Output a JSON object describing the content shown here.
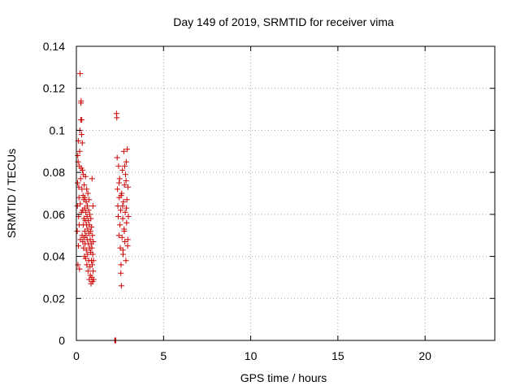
{
  "chart_data": {
    "type": "scatter",
    "title": "Day 149 of 2019, SRMTID for receiver vima",
    "xlabel": "GPS time / hours",
    "ylabel": "SRMTID / TECUs",
    "xlim": [
      0,
      24
    ],
    "ylim": [
      0,
      0.14
    ],
    "xticks": [
      0,
      5,
      10,
      15,
      20
    ],
    "xtick_labels": [
      "0",
      "5",
      "10",
      "15",
      "20"
    ],
    "yticks": [
      0,
      0.02,
      0.04,
      0.06,
      0.08,
      0.1,
      0.12,
      0.14
    ],
    "ytick_labels": [
      "0",
      "0.02",
      "0.04",
      "0.06",
      "0.08",
      "0.1",
      "0.12",
      "0.14"
    ],
    "grid": true,
    "marker": "+",
    "series": [
      {
        "color": "#cc0000",
        "points": [
          [
            0.05,
            0.052
          ],
          [
            0.06,
            0.064
          ],
          [
            0.07,
            0.075
          ],
          [
            0.08,
            0.088
          ],
          [
            0.09,
            0.036
          ],
          [
            0.1,
            0.085
          ],
          [
            0.11,
            0.095
          ],
          [
            0.12,
            0.045
          ],
          [
            0.13,
            0.059
          ],
          [
            0.14,
            0.073
          ],
          [
            0.15,
            0.068
          ],
          [
            0.16,
            0.055
          ],
          [
            0.17,
            0.083
          ],
          [
            0.18,
            0.034
          ],
          [
            0.19,
            0.09
          ],
          [
            0.2,
            0.1
          ],
          [
            0.21,
            0.127
          ],
          [
            0.22,
            0.065
          ],
          [
            0.23,
            0.048
          ],
          [
            0.24,
            0.077
          ],
          [
            0.25,
            0.105
          ],
          [
            0.26,
            0.113
          ],
          [
            0.27,
            0.114
          ],
          [
            0.28,
            0.082
          ],
          [
            0.29,
            0.061
          ],
          [
            0.3,
            0.098
          ],
          [
            0.31,
            0.105
          ],
          [
            0.32,
            0.072
          ],
          [
            0.33,
            0.05
          ],
          [
            0.34,
            0.094
          ],
          [
            0.35,
            0.081
          ],
          [
            0.36,
            0.062
          ],
          [
            0.37,
            0.047
          ],
          [
            0.38,
            0.069
          ],
          [
            0.39,
            0.055
          ],
          [
            0.4,
            0.079
          ],
          [
            0.41,
            0.044
          ],
          [
            0.42,
            0.067
          ],
          [
            0.43,
            0.058
          ],
          [
            0.44,
            0.049
          ],
          [
            0.45,
            0.074
          ],
          [
            0.46,
            0.04
          ],
          [
            0.47,
            0.063
          ],
          [
            0.48,
            0.052
          ],
          [
            0.49,
            0.068
          ],
          [
            0.5,
            0.046
          ],
          [
            0.51,
            0.057
          ],
          [
            0.52,
            0.078
          ],
          [
            0.53,
            0.039
          ],
          [
            0.54,
            0.061
          ],
          [
            0.55,
            0.05
          ],
          [
            0.56,
            0.066
          ],
          [
            0.57,
            0.043
          ],
          [
            0.58,
            0.055
          ],
          [
            0.59,
            0.072
          ],
          [
            0.6,
            0.036
          ],
          [
            0.61,
            0.059
          ],
          [
            0.62,
            0.048
          ],
          [
            0.63,
            0.064
          ],
          [
            0.64,
            0.041
          ],
          [
            0.65,
            0.053
          ],
          [
            0.66,
            0.07
          ],
          [
            0.67,
            0.033
          ],
          [
            0.68,
            0.057
          ],
          [
            0.69,
            0.046
          ],
          [
            0.7,
            0.062
          ],
          [
            0.71,
            0.038
          ],
          [
            0.72,
            0.051
          ],
          [
            0.73,
            0.067
          ],
          [
            0.74,
            0.029
          ],
          [
            0.75,
            0.055
          ],
          [
            0.76,
            0.044
          ],
          [
            0.77,
            0.06
          ],
          [
            0.78,
            0.035
          ],
          [
            0.79,
            0.048
          ],
          [
            0.8,
            0.031
          ],
          [
            0.81,
            0.052
          ],
          [
            0.82,
            0.042
          ],
          [
            0.83,
            0.058
          ],
          [
            0.84,
            0.027
          ],
          [
            0.85,
            0.046
          ],
          [
            0.86,
            0.038
          ],
          [
            0.87,
            0.054
          ],
          [
            0.88,
            0.03
          ],
          [
            0.89,
            0.044
          ],
          [
            0.9,
            0.077
          ],
          [
            0.91,
            0.036
          ],
          [
            0.92,
            0.05
          ],
          [
            0.93,
            0.028
          ],
          [
            0.94,
            0.041
          ],
          [
            0.95,
            0.064
          ],
          [
            0.96,
            0.033
          ],
          [
            0.97,
            0.047
          ],
          [
            0.98,
            0.038
          ],
          [
            0.99,
            0.029
          ],
          [
            2.2,
            0.0
          ],
          [
            2.22,
            0.0
          ],
          [
            2.24,
            0.0
          ],
          [
            2.26,
            0.0
          ],
          [
            2.3,
            0.108
          ],
          [
            2.32,
            0.106
          ],
          [
            2.34,
            0.087
          ],
          [
            2.36,
            0.072
          ],
          [
            2.38,
            0.064
          ],
          [
            2.4,
            0.059
          ],
          [
            2.42,
            0.083
          ],
          [
            2.44,
            0.05
          ],
          [
            2.46,
            0.068
          ],
          [
            2.48,
            0.077
          ],
          [
            2.5,
            0.055
          ],
          [
            2.52,
            0.044
          ],
          [
            2.54,
            0.062
          ],
          [
            2.56,
            0.036
          ],
          [
            2.58,
            0.026
          ],
          [
            2.6,
            0.07
          ],
          [
            2.62,
            0.049
          ],
          [
            2.64,
            0.081
          ],
          [
            2.66,
            0.058
          ],
          [
            2.68,
            0.041
          ],
          [
            2.7,
            0.066
          ],
          [
            2.72,
            0.09
          ],
          [
            2.74,
            0.053
          ],
          [
            2.76,
            0.074
          ],
          [
            2.78,
            0.047
          ],
          [
            2.8,
            0.061
          ],
          [
            2.82,
            0.079
          ],
          [
            2.84,
            0.038
          ],
          [
            2.86,
            0.085
          ],
          [
            2.88,
            0.056
          ],
          [
            2.9,
            0.067
          ],
          [
            2.92,
            0.091
          ],
          [
            2.94,
            0.045
          ],
          [
            2.96,
            0.073
          ],
          [
            2.98,
            0.059
          ],
          [
            2.55,
            0.032
          ],
          [
            2.65,
            0.064
          ],
          [
            2.75,
            0.052
          ],
          [
            2.85,
            0.076
          ],
          [
            2.95,
            0.048
          ],
          [
            2.45,
            0.075
          ],
          [
            2.57,
            0.069
          ],
          [
            2.67,
            0.043
          ],
          [
            2.77,
            0.083
          ],
          [
            2.87,
            0.063
          ]
        ]
      }
    ]
  }
}
